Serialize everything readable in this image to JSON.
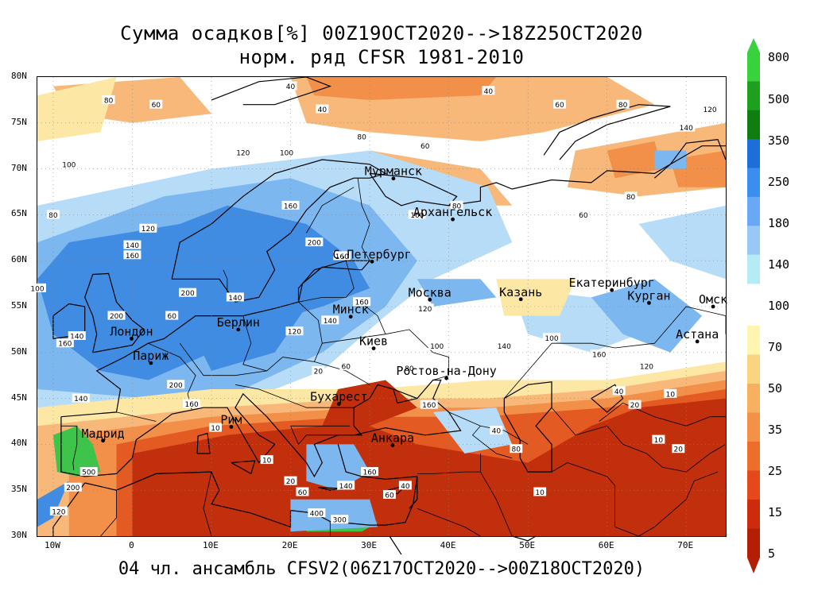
{
  "title": {
    "line1": "Сумма осадков[%] 00Z19OCT2020-->18Z25OCT2020",
    "line2": "норм. ряд CFSR 1981-2010"
  },
  "subtitle": "04 чл. ансамбль CFSV2(06Z17OCT2020-->00Z18OCT2020)",
  "axes": {
    "y_labels": [
      "80N",
      "75N",
      "70N",
      "65N",
      "60N",
      "55N",
      "50N",
      "45N",
      "40N",
      "35N",
      "30N"
    ],
    "x_labels": [
      "10W",
      "0",
      "10E",
      "20E",
      "30E",
      "40E",
      "50E",
      "60E",
      "70E"
    ]
  },
  "cities": [
    {
      "name": "Мурманск",
      "lon": 33.0,
      "lat": 68.95
    },
    {
      "name": "Архангельск",
      "lon": 40.5,
      "lat": 64.5
    },
    {
      "name": "С.Петербург",
      "lon": 30.3,
      "lat": 59.9
    },
    {
      "name": "Москва",
      "lon": 37.6,
      "lat": 55.75
    },
    {
      "name": "Казань",
      "lon": 49.1,
      "lat": 55.8
    },
    {
      "name": "Екатеринбург",
      "lon": 60.6,
      "lat": 56.8
    },
    {
      "name": "Курган",
      "lon": 65.3,
      "lat": 55.4
    },
    {
      "name": "Омск",
      "lon": 73.4,
      "lat": 55.0
    },
    {
      "name": "Астана",
      "lon": 71.4,
      "lat": 51.2
    },
    {
      "name": "Минск",
      "lon": 27.6,
      "lat": 53.9
    },
    {
      "name": "Берлин",
      "lon": 13.4,
      "lat": 52.5
    },
    {
      "name": "Лондон",
      "lon": -0.1,
      "lat": 51.5
    },
    {
      "name": "Париж",
      "lon": 2.35,
      "lat": 48.85
    },
    {
      "name": "Киев",
      "lon": 30.5,
      "lat": 50.45
    },
    {
      "name": "Ростов-на-Дону",
      "lon": 39.7,
      "lat": 47.2
    },
    {
      "name": "Бухарест",
      "lon": 26.1,
      "lat": 44.4
    },
    {
      "name": "Рим",
      "lon": 12.5,
      "lat": 41.9
    },
    {
      "name": "Мадрид",
      "lon": -3.7,
      "lat": 40.4
    },
    {
      "name": "Анкара",
      "lon": 32.9,
      "lat": 39.9
    }
  ],
  "contour_labels": [
    {
      "t": "40",
      "lon": 20,
      "lat": 79
    },
    {
      "t": "80",
      "lon": -3,
      "lat": 77.5
    },
    {
      "t": "60",
      "lon": 3,
      "lat": 77
    },
    {
      "t": "40",
      "lon": 24,
      "lat": 76.5
    },
    {
      "t": "80",
      "lon": 29,
      "lat": 73.5
    },
    {
      "t": "40",
      "lon": 45,
      "lat": 78.5
    },
    {
      "t": "60",
      "lon": 54,
      "lat": 77
    },
    {
      "t": "80",
      "lon": 62,
      "lat": 77
    },
    {
      "t": "120",
      "lon": 73,
      "lat": 76.5
    },
    {
      "t": "140",
      "lon": 70,
      "lat": 74.5
    },
    {
      "t": "120",
      "lon": 14,
      "lat": 71.8
    },
    {
      "t": "100",
      "lon": 19.5,
      "lat": 71.8
    },
    {
      "t": "60",
      "lon": 37,
      "lat": 72.5
    },
    {
      "t": "100",
      "lon": -8,
      "lat": 70.5
    },
    {
      "t": "160",
      "lon": 20,
      "lat": 66
    },
    {
      "t": "160",
      "lon": 36,
      "lat": 65
    },
    {
      "t": "80",
      "lon": 41,
      "lat": 66
    },
    {
      "t": "60",
      "lon": 57,
      "lat": 65
    },
    {
      "t": "80",
      "lon": 63,
      "lat": 67
    },
    {
      "t": "80",
      "lon": -10,
      "lat": 65
    },
    {
      "t": "120",
      "lon": 2,
      "lat": 63.5
    },
    {
      "t": "140",
      "lon": 0,
      "lat": 61.7
    },
    {
      "t": "160",
      "lon": 0,
      "lat": 60.6
    },
    {
      "t": "200",
      "lon": 23,
      "lat": 62
    },
    {
      "t": "160",
      "lon": 26.5,
      "lat": 60.5
    },
    {
      "t": "200",
      "lon": 7,
      "lat": 56.5
    },
    {
      "t": "140",
      "lon": 13,
      "lat": 56
    },
    {
      "t": "160",
      "lon": 29,
      "lat": 55.5
    },
    {
      "t": "120",
      "lon": 37,
      "lat": 54.8
    },
    {
      "t": "200",
      "lon": -2,
      "lat": 54
    },
    {
      "t": "60",
      "lon": 5,
      "lat": 54
    },
    {
      "t": "120",
      "lon": 20.5,
      "lat": 52.3
    },
    {
      "t": "140",
      "lon": 25,
      "lat": 53.5
    },
    {
      "t": "100",
      "lon": 53,
      "lat": 51.6
    },
    {
      "t": "140",
      "lon": 47,
      "lat": 50.7
    },
    {
      "t": "160",
      "lon": 59,
      "lat": 49.8
    },
    {
      "t": "120",
      "lon": 65,
      "lat": 48.5
    },
    {
      "t": "80",
      "lon": 35,
      "lat": 48.3
    },
    {
      "t": "100",
      "lon": 38.5,
      "lat": 50.7
    },
    {
      "t": "60",
      "lon": 27,
      "lat": 48.5
    },
    {
      "t": "20",
      "lon": 23.5,
      "lat": 48
    },
    {
      "t": "200",
      "lon": 5.5,
      "lat": 46.5
    },
    {
      "t": "160",
      "lon": 7.5,
      "lat": 44.4
    },
    {
      "t": "140",
      "lon": -6.5,
      "lat": 45
    },
    {
      "t": "10",
      "lon": 10.5,
      "lat": 41.8
    },
    {
      "t": "10",
      "lon": 17,
      "lat": 38.3
    },
    {
      "t": "20",
      "lon": 20,
      "lat": 36
    },
    {
      "t": "60",
      "lon": 21.5,
      "lat": 34.8
    },
    {
      "t": "160",
      "lon": 37.5,
      "lat": 44.3
    },
    {
      "t": "40",
      "lon": 61.5,
      "lat": 45.8
    },
    {
      "t": "10",
      "lon": 68,
      "lat": 45.5
    },
    {
      "t": "20",
      "lon": 63.5,
      "lat": 44.3
    },
    {
      "t": "10",
      "lon": 66.5,
      "lat": 40.5
    },
    {
      "t": "20",
      "lon": 69,
      "lat": 39.5
    },
    {
      "t": "10",
      "lon": 51.5,
      "lat": 34.8
    },
    {
      "t": "40",
      "lon": 46,
      "lat": 41.5
    },
    {
      "t": "80",
      "lon": 48.5,
      "lat": 39.5
    },
    {
      "t": "500",
      "lon": -5.5,
      "lat": 37
    },
    {
      "t": "200",
      "lon": -7.5,
      "lat": 35.3
    },
    {
      "t": "120",
      "lon": -9.3,
      "lat": 32.7
    },
    {
      "t": "400",
      "lon": 23.3,
      "lat": 32.5
    },
    {
      "t": "300",
      "lon": 26.2,
      "lat": 31.8
    },
    {
      "t": "160",
      "lon": 30,
      "lat": 37
    },
    {
      "t": "140",
      "lon": 27,
      "lat": 35.5
    },
    {
      "t": "60",
      "lon": 32.5,
      "lat": 34.5
    },
    {
      "t": "40",
      "lon": 34.5,
      "lat": 35.5
    },
    {
      "t": "100",
      "lon": -12,
      "lat": 57
    },
    {
      "t": "140",
      "lon": -7,
      "lat": 51.8
    },
    {
      "t": "160",
      "lon": -8.5,
      "lat": 51
    }
  ],
  "legend": {
    "labels": [
      "800",
      "500",
      "350",
      "250",
      "180",
      "140",
      "100",
      "70",
      "50",
      "35",
      "25",
      "15",
      "5"
    ],
    "colors": [
      "#37d23c",
      "#1ea01e",
      "#0f7d0f",
      "#1c6fd9",
      "#3a8ef0",
      "#69a8f5",
      "#96c8f8",
      "#b3ecf4",
      "#fdf5b0",
      "#f9d481",
      "#f7b060",
      "#f39146",
      "#ed6d2b",
      "#e4481b",
      "#cc2b0c",
      "#b31e05"
    ]
  },
  "colors": {
    "deep_red": "#c22f0c",
    "red": "#e45a23",
    "orange": "#f28f48",
    "light_orange": "#f7b87a",
    "yellow": "#fce8a4",
    "white": "#ffffff",
    "light_blue": "#b7dcf7",
    "mid_blue": "#7db7f0",
    "blue": "#3f8ce2",
    "green": "#3ec34b",
    "coast": "#000000"
  }
}
